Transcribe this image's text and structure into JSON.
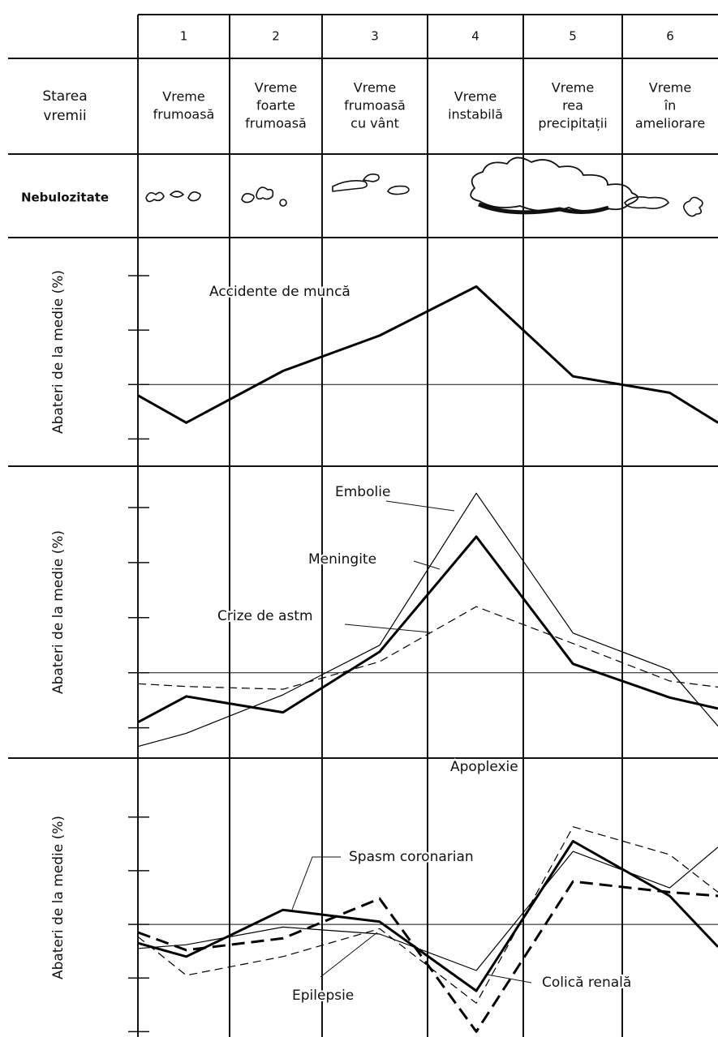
{
  "header": {
    "row_state": [
      "Starea",
      "vremii"
    ],
    "row_cloud": "Nebulozitate",
    "columns": [
      {
        "number": 1,
        "state": [
          "Vreme",
          "frumoasă"
        ]
      },
      {
        "number": 2,
        "state": [
          "Vreme",
          "foarte",
          "frumoasă"
        ]
      },
      {
        "number": 3,
        "state": [
          "Vreme",
          "frumoasă",
          "cu vânt"
        ]
      },
      {
        "number": 4,
        "state": [
          "Vreme",
          "instabilă"
        ]
      },
      {
        "number": 5,
        "state": [
          "Vreme",
          "rea",
          "precipitații"
        ]
      },
      {
        "number": 6,
        "state": [
          "Vreme",
          "în",
          "ameliorare"
        ]
      }
    ]
  },
  "chart_data": [
    {
      "type": "line",
      "y_label": "Abateri de la medie (%)",
      "xlim": [
        0.5,
        6.5
      ],
      "ylim": [
        -1.5,
        2.7
      ],
      "yticks": [
        -1,
        0,
        1,
        2
      ],
      "hline": 0,
      "x": [
        0.5,
        1,
        2,
        3,
        4,
        5,
        6,
        6.5
      ],
      "series": [
        {
          "name": "Accidente de muncă",
          "color": "#000000",
          "width": 3,
          "dash": "none",
          "values": [
            -0.2,
            -0.7,
            0.25,
            0.9,
            1.8,
            0.15,
            -0.15,
            -0.7
          ]
        }
      ]
    },
    {
      "type": "line",
      "y_label": "Abateri de la medie (%)",
      "xlim": [
        0.5,
        6.5
      ],
      "ylim": [
        -1.55,
        3.75
      ],
      "yticks": [
        -1,
        0,
        1,
        2,
        3
      ],
      "hline": 0,
      "x": [
        0.5,
        1,
        2,
        3,
        4,
        5,
        6,
        6.5
      ],
      "series": [
        {
          "name": "Embolie",
          "color": "#000000",
          "width": 1.2,
          "dash": "none",
          "values": [
            -1.34,
            -1.1,
            -0.4,
            0.5,
            3.26,
            0.72,
            0.05,
            -0.97
          ]
        },
        {
          "name": "Meningite",
          "color": "#000000",
          "width": 3,
          "dash": "none",
          "values": [
            -0.9,
            -0.43,
            -0.72,
            0.38,
            2.47,
            0.16,
            -0.45,
            -0.65
          ]
        },
        {
          "name": "Crize de astm",
          "color": "#000000",
          "width": 1.2,
          "dash": "10 6",
          "values": [
            -0.2,
            -0.25,
            -0.3,
            0.2,
            1.2,
            0.53,
            -0.15,
            -0.26
          ]
        }
      ]
    },
    {
      "type": "line",
      "y_label": "Abateri de la medie (%)",
      "xlim": [
        0.5,
        6.5
      ],
      "ylim": [
        -2.1,
        3.1
      ],
      "yticks": [
        -2,
        -1,
        0,
        1,
        2
      ],
      "hline": 0,
      "x": [
        0.5,
        1,
        2,
        3,
        4,
        5,
        6,
        6.5
      ],
      "series": [
        {
          "name": "Apoplexie",
          "color": "#000000",
          "width": 1.2,
          "dash": "10 6",
          "values": [
            -0.23,
            -0.95,
            -0.6,
            -0.08,
            -1.47,
            1.82,
            1.3,
            0.6
          ]
        },
        {
          "name": "Spasm coronarian",
          "color": "#000000",
          "width": 3,
          "dash": "none",
          "values": [
            -0.35,
            -0.6,
            0.27,
            0.05,
            -1.24,
            1.55,
            0.53,
            -0.42
          ]
        },
        {
          "name": "Epilepsie",
          "color": "#000000",
          "width": 1.2,
          "dash": "none",
          "values": [
            -0.45,
            -0.38,
            -0.05,
            -0.18,
            -0.86,
            1.36,
            0.68,
            1.44
          ]
        },
        {
          "name": "Colică renală",
          "color": "#000000",
          "width": 3,
          "dash": "16 8",
          "values": [
            -0.15,
            -0.48,
            -0.26,
            0.48,
            -2.0,
            0.8,
            0.6,
            0.53
          ]
        }
      ]
    }
  ]
}
